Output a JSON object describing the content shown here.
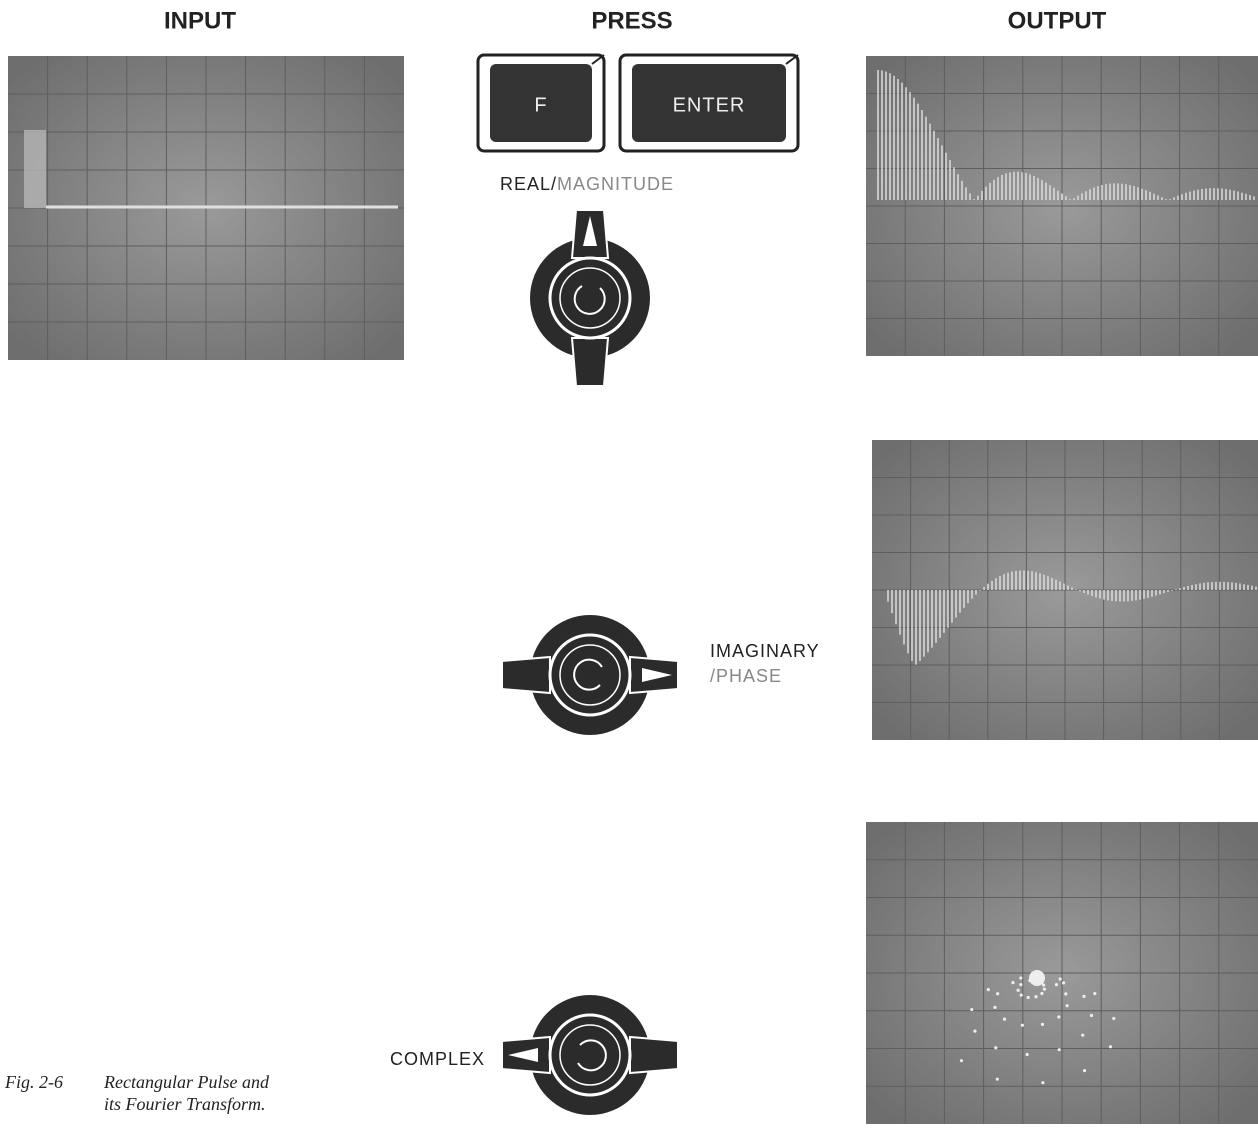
{
  "columns": [
    "INPUT",
    "PRESS",
    "OUTPUT"
  ],
  "keys": [
    "F",
    "ENTER"
  ],
  "modes": [
    {
      "label": [
        "REAL/",
        "MAGNITUDE"
      ]
    },
    {
      "label": [
        "IMAGINARY",
        "/PHASE"
      ]
    },
    {
      "label": [
        "COMPLEX"
      ]
    }
  ],
  "caption": {
    "number": "Fig. 2-6",
    "text": [
      "Rectangular Pulse and",
      "its Fourier Transform."
    ]
  }
}
